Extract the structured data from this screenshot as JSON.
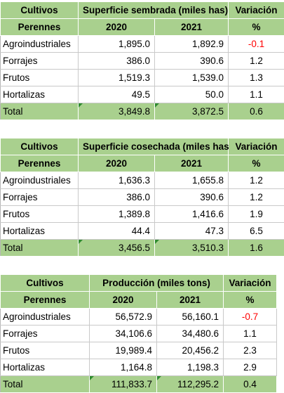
{
  "tables": [
    {
      "header_col1": [
        "Cultivos",
        "Perennes"
      ],
      "header_group": "Superficie sembrada (miles has)",
      "header_years": [
        "2020",
        "2021"
      ],
      "header_var": [
        "Variación",
        "%"
      ],
      "rows": [
        {
          "label": "Agroindustriales",
          "v2020": "1,895.0",
          "v2021": "1,892.9",
          "var": "-0.1"
        },
        {
          "label": "Forrajes",
          "v2020": "386.0",
          "v2021": "390.6",
          "var": "1.2"
        },
        {
          "label": "Frutos",
          "v2020": "1,519.3",
          "v2021": "1,539.0",
          "var": "1.3"
        },
        {
          "label": "Hortalizas",
          "v2020": "49.5",
          "v2021": "50.0",
          "var": "1.1"
        }
      ],
      "total": {
        "label": "Total",
        "v2020": "3,849.8",
        "v2021": "3,872.5",
        "var": "0.6"
      }
    },
    {
      "header_col1": [
        "Cultivos",
        "Perennes"
      ],
      "header_group": "Superficie cosechada (miles has)",
      "header_years": [
        "2020",
        "2021"
      ],
      "header_var": [
        "Variación",
        "%"
      ],
      "rows": [
        {
          "label": "Agroindustriales",
          "v2020": "1,636.3",
          "v2021": "1,655.8",
          "var": "1.2"
        },
        {
          "label": "Forrajes",
          "v2020": "386.0",
          "v2021": "390.6",
          "var": "1.2"
        },
        {
          "label": "Frutos",
          "v2020": "1,389.8",
          "v2021": "1,416.6",
          "var": "1.9"
        },
        {
          "label": "Hortalizas",
          "v2020": "44.4",
          "v2021": "47.3",
          "var": "6.5"
        }
      ],
      "total": {
        "label": "Total",
        "v2020": "3,456.5",
        "v2021": "3,510.3",
        "var": "1.6"
      }
    },
    {
      "header_col1": [
        "Cultivos",
        "Perennes"
      ],
      "header_group": "Producción (miles tons)",
      "header_years": [
        "2020",
        "2021"
      ],
      "header_var": [
        "Variación",
        "%"
      ],
      "rows": [
        {
          "label": "Agroindustriales",
          "v2020": "56,572.9",
          "v2021": "56,160.1",
          "var": "-0.7"
        },
        {
          "label": "Forrajes",
          "v2020": "34,106.6",
          "v2021": "34,480.6",
          "var": "1.1"
        },
        {
          "label": "Frutos",
          "v2020": "19,989.4",
          "v2021": "20,456.2",
          "var": "2.3"
        },
        {
          "label": "Hortalizas",
          "v2020": "1,164.8",
          "v2021": "1,198.3",
          "var": "2.9"
        }
      ],
      "total": {
        "label": "Total",
        "v2020": "111,833.7",
        "v2021": "112,295.2",
        "var": "0.4"
      }
    }
  ],
  "colors": {
    "header_fill": "#a9d08e",
    "negative": "#ff0000",
    "marker": "#2e8b2e"
  }
}
